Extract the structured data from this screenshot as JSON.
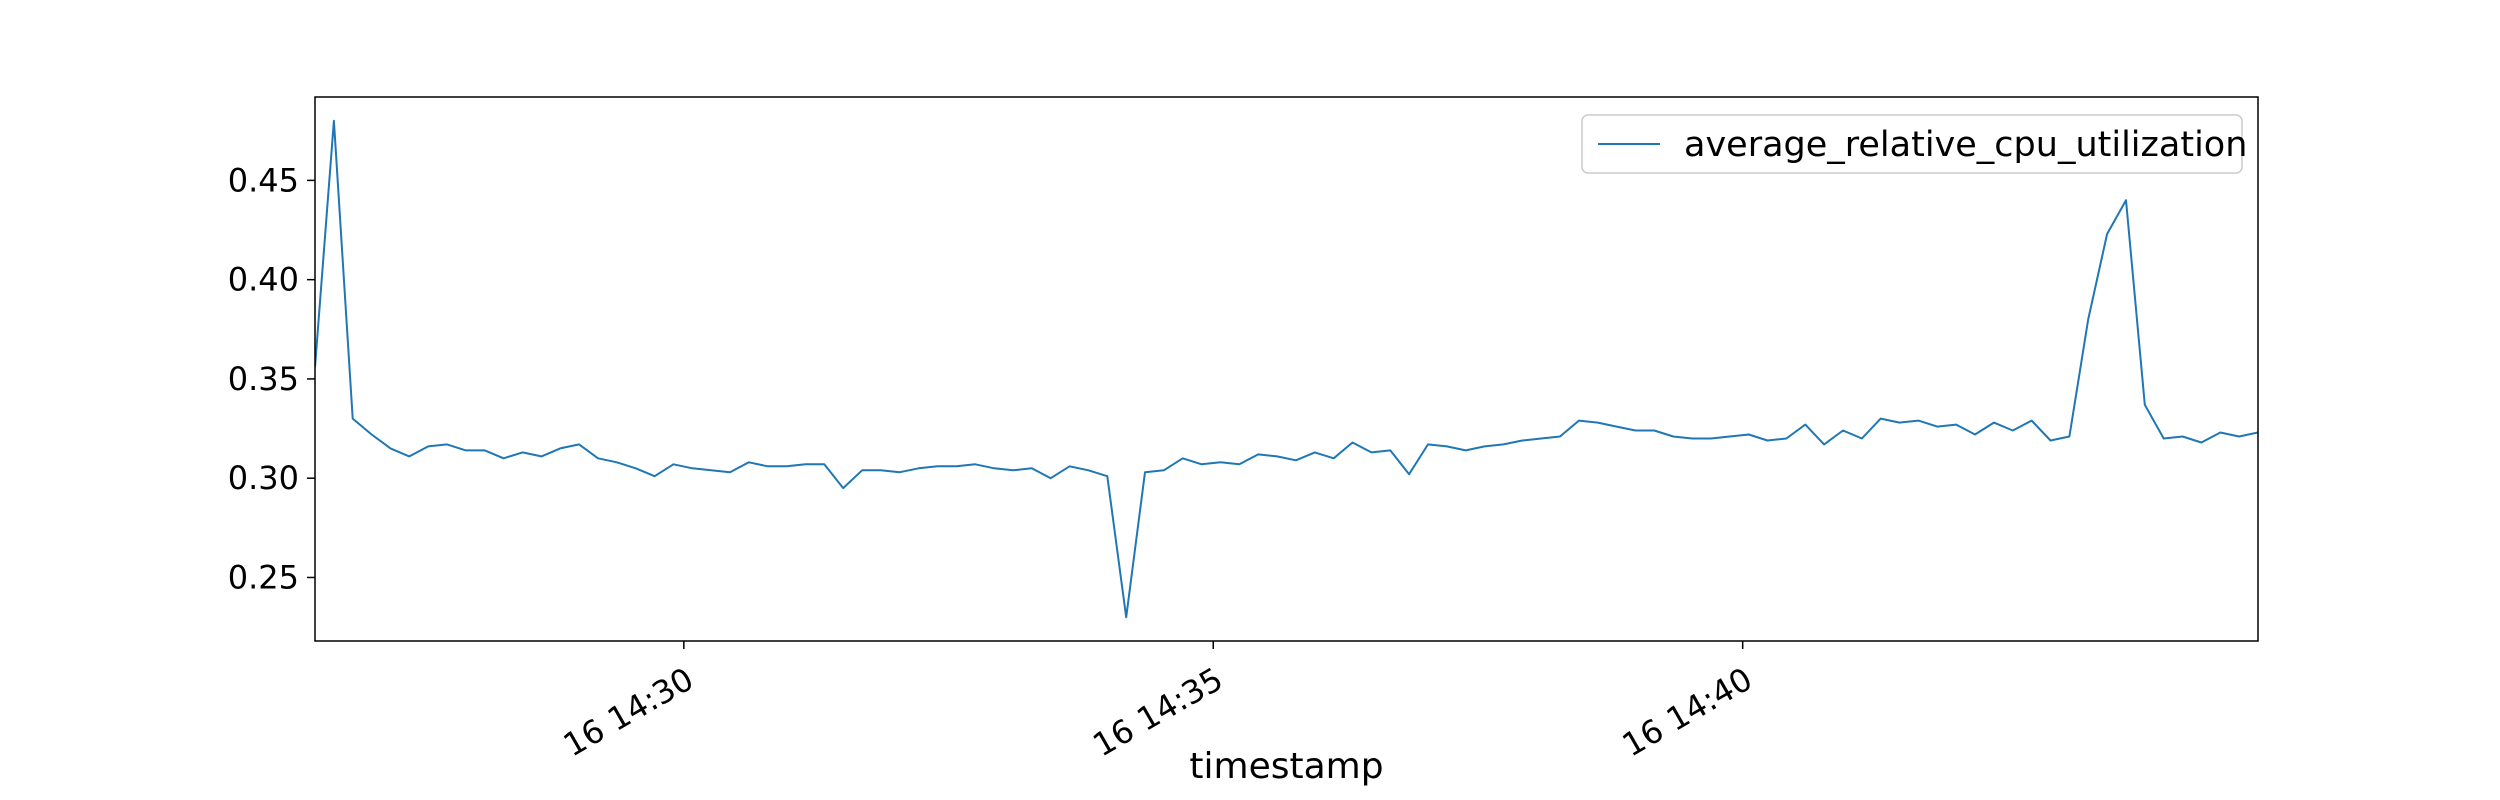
{
  "chart_data": {
    "type": "line",
    "title": "",
    "xlabel": "timestamp",
    "ylabel": "",
    "x_start_time": "16 14:26:31",
    "x_end_time": "16 14:44:52",
    "ylim": [
      0.218,
      0.492
    ],
    "y_ticks": [
      0.25,
      0.3,
      0.35,
      0.4,
      0.45
    ],
    "y_tick_labels": [
      "0.25",
      "0.30",
      "0.35",
      "0.40",
      "0.45"
    ],
    "x_ticks": [
      {
        "time": "16 14:30",
        "label": "16 14:30"
      },
      {
        "time": "16 14:35",
        "label": "16 14:35"
      },
      {
        "time": "16 14:40",
        "label": "16 14:40"
      }
    ],
    "grid": false,
    "legend": {
      "placement": "top-right"
    },
    "series": [
      {
        "name": "average_relative_cpu_utilization",
        "color": "#1f77b4",
        "values": [
          0.356,
          0.48,
          0.33,
          0.322,
          0.315,
          0.311,
          0.316,
          0.317,
          0.314,
          0.314,
          0.31,
          0.313,
          0.311,
          0.315,
          0.317,
          0.31,
          0.308,
          0.305,
          0.301,
          0.307,
          0.305,
          0.304,
          0.303,
          0.308,
          0.306,
          0.306,
          0.307,
          0.307,
          0.295,
          0.304,
          0.304,
          0.303,
          0.305,
          0.306,
          0.306,
          0.307,
          0.305,
          0.304,
          0.305,
          0.3,
          0.306,
          0.304,
          0.301,
          0.23,
          0.303,
          0.304,
          0.31,
          0.307,
          0.308,
          0.307,
          0.312,
          0.311,
          0.309,
          0.313,
          0.31,
          0.318,
          0.313,
          0.314,
          0.302,
          0.317,
          0.316,
          0.314,
          0.316,
          0.317,
          0.319,
          0.32,
          0.321,
          0.329,
          0.328,
          0.326,
          0.324,
          0.324,
          0.321,
          0.32,
          0.32,
          0.321,
          0.322,
          0.319,
          0.32,
          0.327,
          0.317,
          0.324,
          0.32,
          0.33,
          0.328,
          0.329,
          0.326,
          0.327,
          0.322,
          0.328,
          0.324,
          0.329,
          0.319,
          0.321,
          0.38,
          0.423,
          0.44,
          0.337,
          0.32,
          0.321,
          0.318,
          0.323,
          0.321,
          0.323
        ]
      }
    ]
  }
}
